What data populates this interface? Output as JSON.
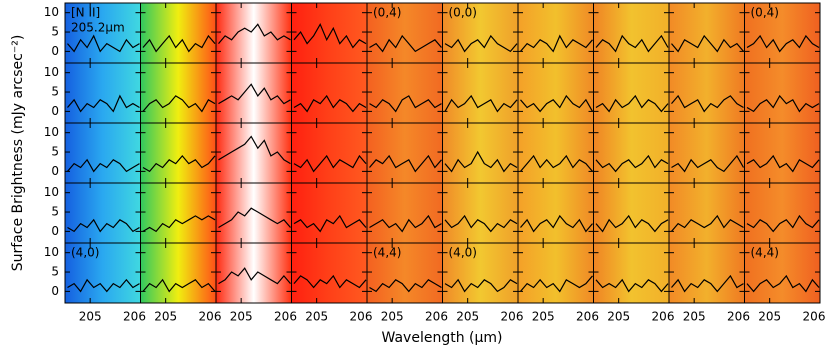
{
  "chart_data": {
    "type": "line",
    "ylabel": "Surface Brightness (mJy arcsec⁻²)",
    "xlabel": "Wavelength (μm)",
    "xlim": [
      204.5,
      206
    ],
    "ylim": [
      -3,
      12.5
    ],
    "xticks": [
      205,
      206
    ],
    "yticks": [
      0,
      5,
      10
    ],
    "rows": 5,
    "cols": 10,
    "color": "#000000",
    "x": [
      204.55,
      204.68,
      204.81,
      204.94,
      205.07,
      205.2,
      205.33,
      205.46,
      205.59,
      205.72,
      205.85,
      205.98
    ],
    "panels": [
      {
        "values": [
          2,
          0,
          3,
          1,
          4,
          0,
          2,
          1,
          0,
          3,
          1,
          2
        ],
        "labels": [
          "[N II]",
          "205.2μm"
        ]
      },
      {
        "values": [
          1,
          3,
          0,
          2,
          4,
          1,
          3,
          0,
          2,
          1,
          4,
          2
        ]
      },
      {
        "values": [
          2,
          4,
          3,
          5,
          6,
          5,
          7,
          4,
          5,
          3,
          4,
          3
        ]
      },
      {
        "values": [
          3,
          5,
          2,
          4,
          7,
          3,
          6,
          2,
          4,
          1,
          3,
          2
        ]
      },
      {
        "values": [
          1,
          2,
          0,
          3,
          1,
          4,
          2,
          0,
          1,
          2,
          3,
          1
        ],
        "labels": [
          "(0,4)"
        ]
      },
      {
        "values": [
          2,
          1,
          3,
          0,
          2,
          3,
          1,
          4,
          2,
          1,
          0,
          2
        ],
        "labels": [
          "(0,0)"
        ]
      },
      {
        "values": [
          0,
          2,
          1,
          3,
          2,
          0,
          4,
          1,
          3,
          2,
          1,
          3
        ]
      },
      {
        "values": [
          1,
          3,
          2,
          0,
          4,
          2,
          1,
          3,
          0,
          2,
          4,
          1
        ]
      },
      {
        "values": [
          2,
          0,
          3,
          2,
          1,
          4,
          2,
          0,
          3,
          1,
          2,
          0
        ]
      },
      {
        "values": [
          1,
          2,
          4,
          1,
          3,
          0,
          2,
          3,
          1,
          4,
          2,
          1
        ],
        "labels": [
          "(0,4)"
        ]
      },
      {
        "values": [
          1,
          3,
          0,
          2,
          1,
          3,
          2,
          0,
          4,
          1,
          2,
          1
        ]
      },
      {
        "values": [
          0,
          2,
          3,
          1,
          2,
          4,
          3,
          1,
          2,
          0,
          3,
          2
        ]
      },
      {
        "values": [
          2,
          3,
          4,
          3,
          5,
          7,
          4,
          6,
          3,
          4,
          2,
          3
        ]
      },
      {
        "values": [
          1,
          2,
          0,
          3,
          2,
          4,
          1,
          3,
          2,
          0,
          2,
          1
        ]
      },
      {
        "values": [
          2,
          1,
          3,
          2,
          0,
          3,
          4,
          1,
          2,
          3,
          1,
          2
        ]
      },
      {
        "values": [
          0,
          3,
          1,
          2,
          4,
          1,
          2,
          3,
          0,
          2,
          1,
          3
        ]
      },
      {
        "values": [
          3,
          1,
          2,
          0,
          2,
          3,
          1,
          4,
          2,
          1,
          3,
          0
        ]
      },
      {
        "values": [
          1,
          2,
          0,
          3,
          1,
          2,
          4,
          1,
          3,
          2,
          0,
          2
        ]
      },
      {
        "values": [
          2,
          4,
          1,
          2,
          3,
          0,
          2,
          1,
          3,
          4,
          2,
          1
        ]
      },
      {
        "values": [
          1,
          0,
          2,
          3,
          1,
          4,
          2,
          3,
          0,
          2,
          1,
          2
        ]
      },
      {
        "values": [
          0,
          2,
          1,
          3,
          0,
          2,
          1,
          3,
          2,
          0,
          1,
          2
        ]
      },
      {
        "values": [
          1,
          0,
          2,
          1,
          3,
          2,
          4,
          2,
          3,
          1,
          2,
          4
        ]
      },
      {
        "values": [
          3,
          4,
          5,
          6,
          7,
          9,
          6,
          8,
          4,
          5,
          3,
          2
        ]
      },
      {
        "values": [
          2,
          1,
          3,
          0,
          2,
          4,
          1,
          3,
          2,
          1,
          4,
          2
        ]
      },
      {
        "values": [
          1,
          3,
          2,
          4,
          1,
          2,
          3,
          0,
          2,
          4,
          1,
          3
        ]
      },
      {
        "values": [
          2,
          0,
          3,
          1,
          2,
          5,
          2,
          1,
          3,
          0,
          2,
          1
        ]
      },
      {
        "values": [
          0,
          2,
          4,
          1,
          3,
          1,
          2,
          4,
          1,
          3,
          2,
          0
        ]
      },
      {
        "values": [
          3,
          1,
          2,
          0,
          2,
          3,
          1,
          2,
          4,
          1,
          3,
          2
        ]
      },
      {
        "values": [
          1,
          2,
          0,
          3,
          1,
          2,
          3,
          1,
          0,
          2,
          4,
          1
        ]
      },
      {
        "values": [
          2,
          3,
          1,
          2,
          4,
          1,
          2,
          0,
          3,
          2,
          1,
          3
        ]
      },
      {
        "values": [
          1,
          0,
          2,
          1,
          3,
          0,
          2,
          1,
          3,
          2,
          0,
          1
        ]
      },
      {
        "values": [
          0,
          1,
          0,
          2,
          1,
          3,
          2,
          3,
          4,
          3,
          4,
          3
        ]
      },
      {
        "values": [
          1,
          2,
          3,
          5,
          4,
          6,
          5,
          4,
          3,
          2,
          3,
          1
        ]
      },
      {
        "values": [
          2,
          3,
          1,
          2,
          0,
          3,
          2,
          4,
          1,
          2,
          3,
          1
        ]
      },
      {
        "values": [
          1,
          2,
          3,
          1,
          2,
          0,
          3,
          1,
          2,
          4,
          1,
          2
        ]
      },
      {
        "values": [
          3,
          1,
          2,
          4,
          1,
          3,
          2,
          0,
          2,
          1,
          3,
          2
        ]
      },
      {
        "values": [
          1,
          3,
          0,
          2,
          3,
          1,
          4,
          2,
          1,
          3,
          0,
          2
        ]
      },
      {
        "values": [
          2,
          0,
          3,
          1,
          2,
          4,
          1,
          3,
          2,
          0,
          2,
          3
        ]
      },
      {
        "values": [
          0,
          2,
          1,
          3,
          2,
          1,
          2,
          4,
          1,
          3,
          2,
          1
        ]
      },
      {
        "values": [
          2,
          1,
          3,
          2,
          0,
          2,
          3,
          1,
          4,
          2,
          1,
          3
        ]
      },
      {
        "values": [
          1,
          2,
          0,
          3,
          1,
          2,
          0,
          2,
          1,
          3,
          1,
          2
        ],
        "labels": [
          "(4,0)"
        ]
      },
      {
        "values": [
          0,
          2,
          1,
          3,
          0,
          2,
          1,
          2,
          3,
          1,
          2,
          0
        ]
      },
      {
        "values": [
          2,
          3,
          5,
          4,
          6,
          3,
          5,
          4,
          3,
          2,
          4,
          2
        ]
      },
      {
        "values": [
          2,
          4,
          3,
          1,
          3,
          2,
          4,
          1,
          3,
          2,
          1,
          3
        ]
      },
      {
        "values": [
          1,
          0,
          2,
          1,
          3,
          2,
          0,
          2,
          1,
          3,
          2,
          1
        ],
        "labels": [
          "(4,4)"
        ]
      },
      {
        "values": [
          2,
          1,
          3,
          0,
          2,
          1,
          3,
          2,
          0,
          1,
          3,
          2
        ],
        "labels": [
          "(4,0)"
        ]
      },
      {
        "values": [
          0,
          2,
          1,
          3,
          1,
          2,
          0,
          3,
          2,
          1,
          2,
          4
        ]
      },
      {
        "values": [
          3,
          1,
          2,
          1,
          3,
          0,
          2,
          1,
          3,
          2,
          0,
          2
        ]
      },
      {
        "values": [
          1,
          3,
          0,
          2,
          1,
          3,
          2,
          0,
          2,
          4,
          1,
          2
        ]
      },
      {
        "values": [
          2,
          0,
          2,
          3,
          1,
          2,
          4,
          1,
          2,
          0,
          3,
          1
        ],
        "labels": [
          "(4,4)"
        ]
      }
    ]
  }
}
